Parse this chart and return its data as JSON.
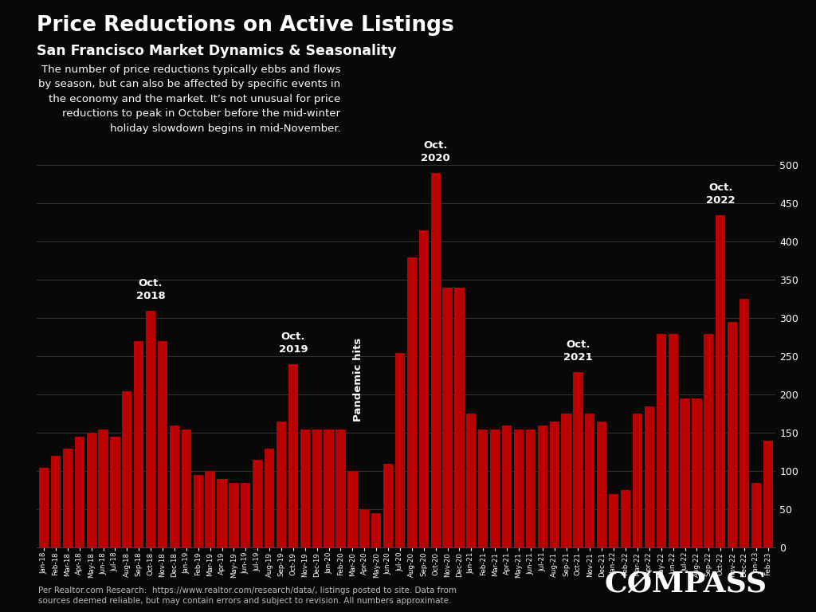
{
  "title": "Price Reductions on Active Listings",
  "subtitle": "San Francisco Market Dynamics & Seasonality",
  "background_color": "#080808",
  "bar_color": "#bb0000",
  "text_color": "#ffffff",
  "annotation_text": "The number of price reductions typically ebbs and flows\nby season, but can also be affected by specific events in\nthe economy and the market. It’s not unusual for price\nreductions to peak in October before the mid-winter\nholiday slowdown begins in mid-November.",
  "footer_text": "Per Realtor.com Research:  https://www.realtor.com/research/data/, listings posted to site. Data from\nsources deemed reliable, but may contain errors and subject to revision. All numbers approximate.",
  "ylim": [
    0,
    500
  ],
  "yticks": [
    0,
    50,
    100,
    150,
    200,
    250,
    300,
    350,
    400,
    450,
    500
  ],
  "labels": [
    "Jan-18",
    "Feb-18",
    "Mar-18",
    "Apr-18",
    "May-18",
    "Jun-18",
    "Jul-18",
    "Aug-18",
    "Sep-18",
    "Oct-18",
    "Nov-18",
    "Dec-18",
    "Jan-19",
    "Feb-19",
    "Mar-19",
    "Apr-19",
    "May-19",
    "Jun-19",
    "Jul-19",
    "Aug-19",
    "Sep-19",
    "Oct-19",
    "Nov-19",
    "Dec-19",
    "Jan-20",
    "Feb-20",
    "Mar-20",
    "Apr-20",
    "May-20",
    "Jun-20",
    "Jul-20",
    "Aug-20",
    "Sep-20",
    "Oct-20",
    "Nov-20",
    "Dec-20",
    "Jan-21",
    "Feb-21",
    "Mar-21",
    "Apr-21",
    "May-21",
    "Jun-21",
    "Jul-21",
    "Aug-21",
    "Sep-21",
    "Oct-21",
    "Nov-21",
    "Dec-21",
    "Jan-22",
    "Feb-22",
    "Mar-22",
    "Apr-22",
    "May-22",
    "Jun-22",
    "Jul-22",
    "Aug-22",
    "Sep-22",
    "Oct-22",
    "Nov-22",
    "Dec-22",
    "Jan-23",
    "Feb-23"
  ],
  "values": [
    105,
    120,
    130,
    145,
    150,
    155,
    145,
    205,
    270,
    310,
    270,
    160,
    155,
    95,
    100,
    90,
    85,
    85,
    115,
    130,
    165,
    240,
    155,
    155,
    155,
    155,
    100,
    50,
    45,
    110,
    255,
    380,
    415,
    490,
    340,
    340,
    175,
    155,
    155,
    160,
    155,
    155,
    160,
    165,
    175,
    230,
    175,
    165,
    70,
    75,
    175,
    185,
    280,
    280,
    195,
    195,
    280,
    435,
    295,
    325,
    85,
    140
  ],
  "peak_annotations": [
    {
      "label": "Oct.\n2018",
      "bar_index": 9
    },
    {
      "label": "Oct.\n2019",
      "bar_index": 21
    },
    {
      "label": "Oct.\n2020",
      "bar_index": 33
    },
    {
      "label": "Oct.\n2021",
      "bar_index": 45
    },
    {
      "label": "Oct.\n2022",
      "bar_index": 57
    }
  ],
  "pandemic_bar_index": 26,
  "pandemic_label": "Pandemic hits"
}
